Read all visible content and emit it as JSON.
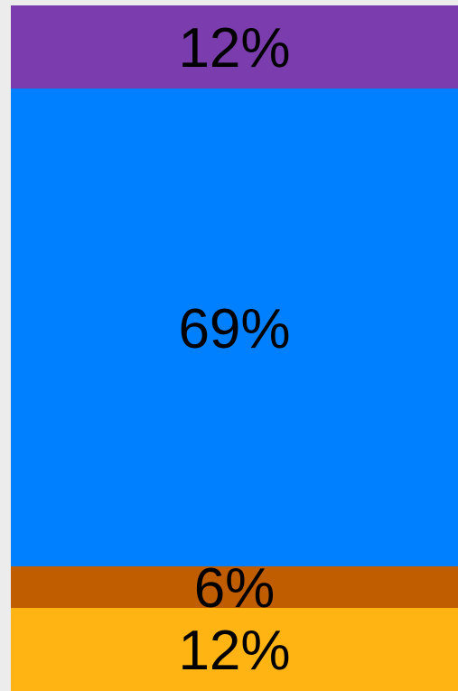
{
  "chart_data": {
    "type": "bar",
    "orientation": "vertical-stacked",
    "stack_order": "top-to-bottom",
    "segments": [
      {
        "value": 12,
        "label": "12%",
        "color": "#7b3cad"
      },
      {
        "value": 69,
        "label": "69%",
        "color": "#0080ff"
      },
      {
        "value": 6,
        "label": "6%",
        "color": "#c05d00"
      },
      {
        "value": 12,
        "label": "12%",
        "color": "#ffb414"
      }
    ],
    "title": "",
    "xlabel": "",
    "ylabel": "",
    "grid": false,
    "legend": "none"
  }
}
